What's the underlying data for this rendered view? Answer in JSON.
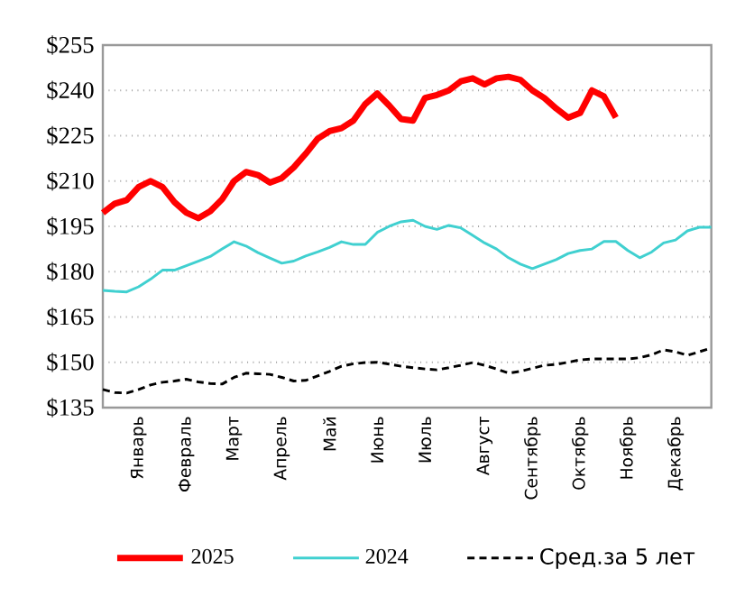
{
  "chart_data": {
    "type": "line",
    "categories": [
      null,
      null,
      null,
      "Январь",
      null,
      null,
      null,
      "Февраль",
      null,
      null,
      null,
      "Март",
      null,
      null,
      null,
      "Апрель",
      null,
      null,
      null,
      "Май",
      null,
      null,
      null,
      "Июнь",
      null,
      null,
      null,
      "Июль",
      null,
      null,
      null,
      null,
      "Август",
      null,
      null,
      null,
      "Сентябрь",
      null,
      null,
      null,
      "Октябрь",
      null,
      null,
      null,
      "Ноябрь",
      null,
      null,
      null,
      "Декабрь",
      null,
      null,
      null
    ],
    "ylim": [
      135,
      255
    ],
    "yticks": [
      {
        "value": 135,
        "label": "$135"
      },
      {
        "value": 150,
        "label": "$150"
      },
      {
        "value": 165,
        "label": "$165"
      },
      {
        "value": 180,
        "label": "$180"
      },
      {
        "value": 195,
        "label": "$195"
      },
      {
        "value": 210,
        "label": "$210"
      },
      {
        "value": 225,
        "label": "$225"
      },
      {
        "value": 240,
        "label": "$240"
      },
      {
        "value": 255,
        "label": "$255"
      }
    ],
    "grid": "y",
    "legend": "bottom",
    "marker": "none",
    "series": [
      {
        "name": "2025",
        "color": "#ff0000",
        "line_style": "solid",
        "values": [
          199.5,
          202.5,
          203.7,
          208,
          210,
          208,
          203,
          199.5,
          197.7,
          200,
          204,
          210,
          213,
          212,
          209.5,
          211,
          214.5,
          219,
          224,
          226.5,
          227.5,
          230,
          235.5,
          239,
          235,
          230.5,
          230,
          237.5,
          238.5,
          240,
          243,
          244,
          242,
          244,
          244.5,
          243.5,
          240,
          237.5,
          234,
          231,
          232.5,
          240,
          238,
          231,
          null,
          null,
          null,
          null,
          null,
          null,
          null,
          null
        ]
      },
      {
        "name": "2024",
        "color": "#40d0d0",
        "line_style": "solid",
        "values": [
          173.8,
          173.5,
          173.3,
          175,
          177.5,
          180.5,
          180.5,
          182,
          183.5,
          185,
          187.5,
          189.9,
          188.5,
          186.3,
          184.5,
          182.8,
          183.5,
          185.2,
          186.5,
          188,
          189.9,
          189,
          189,
          193,
          195,
          196.5,
          197,
          195,
          194,
          195.3,
          194.5,
          192,
          189.5,
          187.5,
          184.6,
          182.5,
          181,
          182.5,
          184,
          186,
          187,
          187.5,
          190,
          190,
          187,
          184.6,
          186.5,
          189.5,
          190.5,
          193.5,
          194.7,
          194.7
        ]
      },
      {
        "name": "Сред.за 5 лет",
        "color": "#000000",
        "line_style": "dashed",
        "values": [
          141,
          140,
          139.8,
          141,
          142.5,
          143.4,
          143.8,
          144.4,
          143.5,
          143,
          142.8,
          145,
          146.4,
          146.2,
          146,
          145,
          143.8,
          144,
          145.5,
          147,
          148.7,
          149.5,
          149.9,
          150,
          149.4,
          148.7,
          148.2,
          147.8,
          147.5,
          148.2,
          149,
          149.9,
          149,
          147.8,
          146.4,
          147,
          148,
          149,
          149.3,
          150,
          150.8,
          151.1,
          151.1,
          151.1,
          151.1,
          151.5,
          152.5,
          154.1,
          153.5,
          152.3,
          153.5,
          154.7
        ]
      }
    ]
  }
}
